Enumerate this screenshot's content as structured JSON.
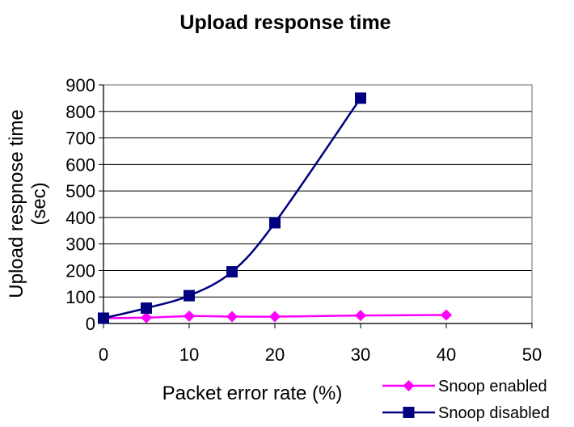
{
  "chart_data": {
    "type": "line",
    "title": "Upload response time",
    "xlabel": "Packet error rate (%)",
    "ylabel_lines": [
      "Upload respnose time",
      "(sec)"
    ],
    "xlim": [
      0,
      50
    ],
    "ylim": [
      0,
      900
    ],
    "x_ticks": [
      0,
      10,
      20,
      30,
      40,
      50
    ],
    "y_ticks": [
      0,
      100,
      200,
      300,
      400,
      500,
      600,
      700,
      800,
      900
    ],
    "grid": "horizontal",
    "legend_position": "bottom-right",
    "series": [
      {
        "name": "Snoop enabled",
        "color": "#ff00ff",
        "marker": "diamond",
        "x": [
          0,
          5,
          10,
          15,
          20,
          30,
          40
        ],
        "y": [
          20,
          22,
          28,
          26,
          26,
          30,
          32
        ]
      },
      {
        "name": "Snoop disabled",
        "color": "#000080",
        "marker": "square",
        "x": [
          0,
          5,
          10,
          15,
          20,
          30
        ],
        "y": [
          20,
          58,
          105,
          195,
          380,
          850
        ]
      }
    ]
  }
}
